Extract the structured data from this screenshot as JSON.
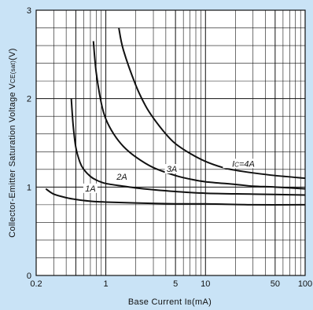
{
  "chart_data": {
    "type": "line",
    "title": "",
    "xlabel": "Base Current I",
    "xlabel_sub": "B",
    "xlabel_unit": "(mA)",
    "ylabel": "Collector-Emitter Saturation Voltage V",
    "ylabel_sub": "CE(sat)",
    "ylabel_unit": "(V)",
    "x_scale": "log",
    "xlim": [
      0.2,
      100
    ],
    "ylim": [
      0,
      3
    ],
    "x_ticks": [
      {
        "value": 0.2,
        "label": "0.2"
      },
      {
        "value": 1,
        "label": "1"
      },
      {
        "value": 5,
        "label": "5"
      },
      {
        "value": 10,
        "label": "10"
      },
      {
        "value": 50,
        "label": "50"
      },
      {
        "value": 100,
        "label": "100"
      }
    ],
    "y_ticks": [
      {
        "value": 0,
        "label": "0"
      },
      {
        "value": 1,
        "label": "1"
      },
      {
        "value": 2,
        "label": "2"
      },
      {
        "value": 3,
        "label": "3"
      }
    ],
    "grid": true,
    "colors": {
      "background": "#c9e3f6",
      "plot_area": "#ffffff",
      "line": "#111111"
    },
    "series": [
      {
        "name": "1A",
        "label_at": {
          "x": 0.7,
          "y": 0.96
        },
        "x": [
          0.25,
          0.3,
          0.4,
          0.5,
          0.7,
          1,
          2,
          5,
          10,
          30,
          100
        ],
        "y": [
          0.98,
          0.92,
          0.88,
          0.86,
          0.84,
          0.83,
          0.82,
          0.81,
          0.81,
          0.8,
          0.8
        ]
      },
      {
        "name": "2A",
        "label_at": {
          "x": 1.45,
          "y": 1.09
        },
        "x": [
          0.45,
          0.47,
          0.5,
          0.55,
          0.6,
          0.7,
          0.8,
          1,
          1.5,
          2,
          3,
          5,
          10,
          30,
          100
        ],
        "y": [
          2.0,
          1.7,
          1.45,
          1.28,
          1.2,
          1.12,
          1.08,
          1.04,
          1.01,
          0.99,
          0.97,
          0.95,
          0.93,
          0.92,
          0.91
        ]
      },
      {
        "name": "3A",
        "label_at": {
          "x": 4.6,
          "y": 1.18
        },
        "x": [
          0.75,
          0.8,
          0.9,
          1,
          1.2,
          1.5,
          2,
          3,
          5,
          7,
          10,
          20,
          30,
          50,
          100
        ],
        "y": [
          2.65,
          2.3,
          1.95,
          1.77,
          1.6,
          1.46,
          1.34,
          1.22,
          1.13,
          1.09,
          1.06,
          1.03,
          1.01,
          1.0,
          0.98
        ]
      },
      {
        "name": "Ic=4A",
        "label_at": {
          "x": 24,
          "y": 1.24
        },
        "x": [
          1.35,
          1.5,
          2,
          2.5,
          3,
          4,
          5,
          7,
          10,
          15,
          20,
          30,
          50,
          100
        ],
        "y": [
          2.8,
          2.55,
          2.15,
          1.92,
          1.78,
          1.6,
          1.49,
          1.38,
          1.29,
          1.22,
          1.19,
          1.16,
          1.13,
          1.1
        ]
      }
    ]
  }
}
